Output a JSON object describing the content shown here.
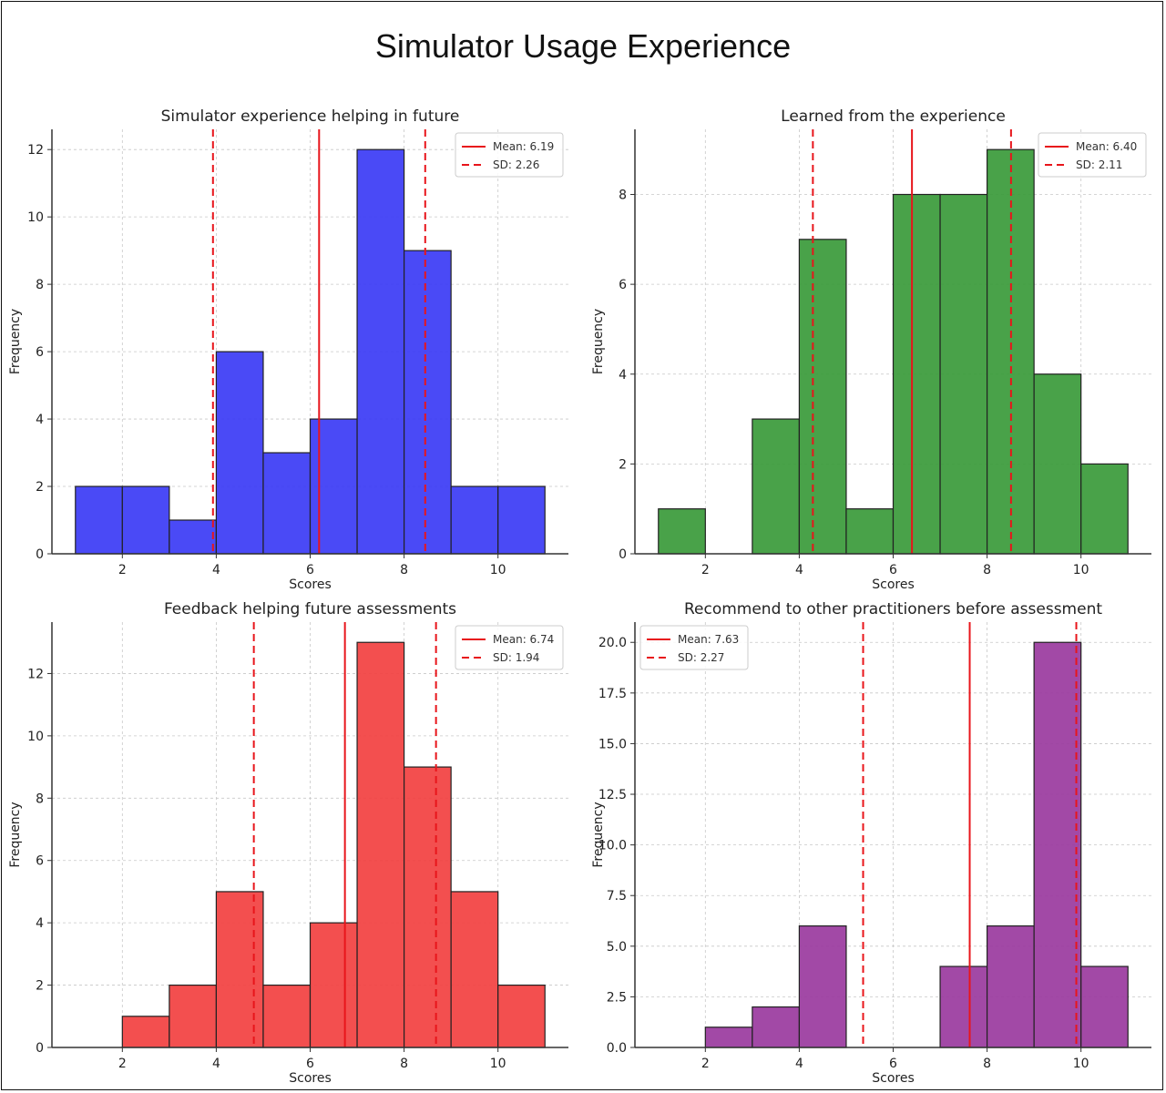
{
  "figure": {
    "title": "Simulator Usage Experience"
  },
  "chart_data": [
    {
      "type": "bar",
      "subtype": "histogram",
      "title": "Simulator experience helping in future",
      "xlabel": "Scores",
      "ylabel": "Frequency",
      "color": "#3b3bf5",
      "bin_edges": [
        1,
        2,
        3,
        4,
        5,
        6,
        7,
        8,
        9,
        10,
        11
      ],
      "values": [
        2,
        2,
        1,
        6,
        3,
        4,
        12,
        9,
        2,
        2
      ],
      "xlim": [
        0.5,
        11.5
      ],
      "ylim": [
        0,
        12.6
      ],
      "xticks": [
        2,
        4,
        6,
        8,
        10
      ],
      "yticks": [
        0,
        2,
        4,
        6,
        8,
        10,
        12
      ],
      "ytick_labels": [
        "0",
        "2",
        "4",
        "6",
        "8",
        "10",
        "12"
      ],
      "mean": 6.19,
      "sd": 2.26,
      "legend": {
        "position": "top-right",
        "mean_label": "Mean: 6.19",
        "sd_label": "SD: 2.26"
      },
      "grid": true
    },
    {
      "type": "bar",
      "subtype": "histogram",
      "title": "Learned from the experience",
      "xlabel": "Scores",
      "ylabel": "Frequency",
      "color": "#3a9a3a",
      "bin_edges": [
        1,
        2,
        3,
        4,
        5,
        6,
        7,
        8,
        9,
        10,
        11
      ],
      "values": [
        1,
        0,
        3,
        7,
        1,
        8,
        8,
        9,
        4,
        2
      ],
      "xlim": [
        0.5,
        11.5
      ],
      "ylim": [
        0,
        9.45
      ],
      "xticks": [
        2,
        4,
        6,
        8,
        10
      ],
      "yticks": [
        0,
        2,
        4,
        6,
        8
      ],
      "ytick_labels": [
        "0",
        "2",
        "4",
        "6",
        "8"
      ],
      "mean": 6.4,
      "sd": 2.11,
      "legend": {
        "position": "top-right",
        "mean_label": "Mean: 6.40",
        "sd_label": "SD: 2.11"
      },
      "grid": true
    },
    {
      "type": "bar",
      "subtype": "histogram",
      "title": "Feedback helping future assessments",
      "xlabel": "Scores",
      "ylabel": "Frequency",
      "color": "#f24040",
      "bin_edges": [
        2,
        3,
        4,
        5,
        6,
        7,
        8,
        9,
        10,
        11
      ],
      "values": [
        1,
        2,
        5,
        2,
        4,
        13,
        9,
        5,
        2
      ],
      "xlim": [
        0.5,
        11.5
      ],
      "ylim": [
        0,
        13.65
      ],
      "xticks": [
        2,
        4,
        6,
        8,
        10
      ],
      "yticks": [
        0,
        2,
        4,
        6,
        8,
        10,
        12
      ],
      "ytick_labels": [
        "0",
        "2",
        "4",
        "6",
        "8",
        "10",
        "12"
      ],
      "mean": 6.74,
      "sd": 1.94,
      "legend": {
        "position": "top-right",
        "mean_label": "Mean: 6.74",
        "sd_label": "SD: 1.94"
      },
      "grid": true
    },
    {
      "type": "bar",
      "subtype": "histogram",
      "title": "Recommend to other practitioners before assessment",
      "xlabel": "Scores",
      "ylabel": "Frequency",
      "color": "#9a3a9e",
      "bin_edges": [
        2,
        3,
        4,
        5,
        6,
        7,
        8,
        9,
        10,
        11
      ],
      "values": [
        1,
        2,
        6,
        0,
        0,
        4,
        6,
        20,
        4
      ],
      "xlim": [
        0.5,
        11.5
      ],
      "ylim": [
        0,
        21
      ],
      "xticks": [
        2,
        4,
        6,
        8,
        10
      ],
      "yticks": [
        0,
        2.5,
        5,
        7.5,
        10,
        12.5,
        15,
        17.5,
        20
      ],
      "ytick_labels": [
        "0.0",
        "2.5",
        "5.0",
        "7.5",
        "10.0",
        "12.5",
        "15.0",
        "17.5",
        "20.0"
      ],
      "mean": 7.63,
      "sd": 2.27,
      "legend": {
        "position": "top-left",
        "mean_label": "Mean: 7.63",
        "sd_label": "SD: 2.27"
      },
      "grid": true
    }
  ],
  "style": {
    "line_color": "#e8151b",
    "grid_color": "#c8c8c8",
    "axis_color": "#333333"
  }
}
